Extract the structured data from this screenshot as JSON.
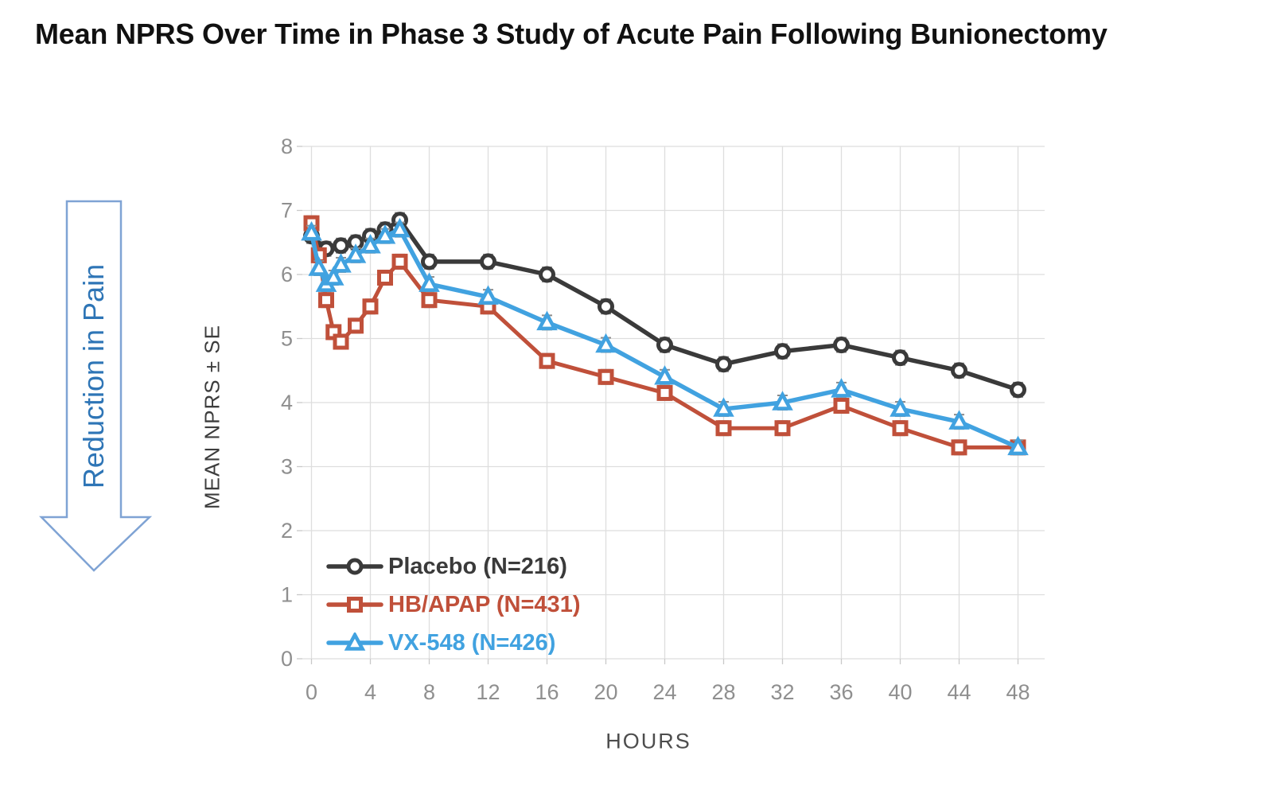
{
  "title": "Mean NPRS Over Time in Phase 3 Study of Acute Pain Following Bunionectomy",
  "annotation": {
    "arrow_label": "Reduction in Pain"
  },
  "axes": {
    "x_title": "HOURS",
    "y_title": "MEAN NPRS ± SE"
  },
  "colors": {
    "placebo": "#3a3a3a",
    "hb_apap": "#c0503a",
    "vx548": "#41a2e0",
    "grid": "#dedede",
    "tick_label": "#8f8f8f",
    "error_bar": "#8c8c8c",
    "arrow_outline": "#7fa3d4",
    "arrow_text": "#2e75b6",
    "title_text": "#111111"
  },
  "chart_data": {
    "type": "line",
    "title": "Mean NPRS Over Time in Phase 3 Study of Acute Pain Following Bunionectomy",
    "xlabel": "HOURS",
    "ylabel": "MEAN NPRS ± SE",
    "xlim": [
      0,
      48
    ],
    "ylim": [
      0,
      8
    ],
    "x_ticks": [
      0,
      4,
      8,
      12,
      16,
      20,
      24,
      28,
      32,
      36,
      40,
      44,
      48
    ],
    "y_ticks": [
      0,
      1,
      2,
      3,
      4,
      5,
      6,
      7,
      8
    ],
    "grid": true,
    "legend_position": "inside-bottom-left",
    "error_bars": "± SE, approx ±0.1 NPRS shown at each point",
    "series": [
      {
        "name": "Placebo (N=216)",
        "marker": "circle",
        "color": "#3a3a3a",
        "x": [
          0,
          1,
          2,
          3,
          4,
          5,
          6,
          8,
          12,
          16,
          20,
          24,
          28,
          32,
          36,
          40,
          44,
          48
        ],
        "y": [
          6.6,
          6.4,
          6.45,
          6.5,
          6.6,
          6.7,
          6.85,
          6.2,
          6.2,
          6.0,
          5.5,
          4.9,
          4.6,
          4.8,
          4.9,
          4.7,
          4.5,
          4.2
        ]
      },
      {
        "name": "HB/APAP (N=431)",
        "marker": "square",
        "color": "#c0503a",
        "x": [
          0,
          0.5,
          1,
          1.5,
          2,
          3,
          4,
          5,
          6,
          8,
          12,
          16,
          20,
          24,
          28,
          32,
          36,
          40,
          44,
          48
        ],
        "y": [
          6.8,
          6.3,
          5.6,
          5.1,
          4.95,
          5.2,
          5.5,
          5.95,
          6.2,
          5.6,
          5.5,
          4.65,
          4.4,
          4.15,
          3.6,
          3.6,
          3.95,
          3.6,
          3.3,
          3.3
        ]
      },
      {
        "name": "VX-548 (N=426)",
        "marker": "triangle",
        "color": "#41a2e0",
        "x": [
          0,
          0.5,
          1,
          1.5,
          2,
          3,
          4,
          5,
          6,
          8,
          12,
          16,
          20,
          24,
          28,
          32,
          36,
          40,
          44,
          48
        ],
        "y": [
          6.65,
          6.1,
          5.85,
          5.95,
          6.15,
          6.3,
          6.45,
          6.6,
          6.7,
          5.85,
          5.65,
          5.25,
          4.9,
          4.4,
          3.9,
          4.0,
          4.2,
          3.9,
          3.7,
          3.3
        ]
      }
    ]
  }
}
